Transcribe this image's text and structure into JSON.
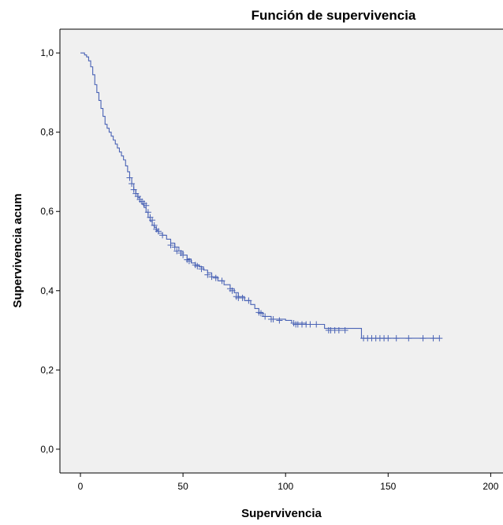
{
  "chart_data": {
    "type": "line",
    "title": "Función de supervivencia",
    "xlabel": "Supervivencia",
    "ylabel": "Supervivencia acum",
    "xlim": [
      -10,
      206
    ],
    "ylim": [
      -0.06,
      1.06
    ],
    "x_ticks": [
      0,
      50,
      100,
      150,
      200
    ],
    "x_tick_labels": [
      "0",
      "50",
      "100",
      "150",
      "200"
    ],
    "y_ticks": [
      0.0,
      0.2,
      0.4,
      0.6,
      0.8,
      1.0
    ],
    "y_tick_labels": [
      "0,0",
      "0,2",
      "0,4",
      "0,6",
      "0,8",
      "1,0"
    ],
    "grid": false,
    "colors": {
      "line": "#4a63b5",
      "plot_bg": "#f0f0f0",
      "frame": "#000000"
    },
    "series": [
      {
        "step": [
          [
            0,
            1.0
          ],
          [
            2,
            0.995
          ],
          [
            3,
            0.99
          ],
          [
            4,
            0.98
          ],
          [
            5,
            0.965
          ],
          [
            6,
            0.945
          ],
          [
            7,
            0.92
          ],
          [
            8,
            0.9
          ],
          [
            9,
            0.88
          ],
          [
            10,
            0.86
          ],
          [
            11,
            0.84
          ],
          [
            12,
            0.82
          ],
          [
            13,
            0.81
          ],
          [
            14,
            0.8
          ],
          [
            15,
            0.79
          ],
          [
            16,
            0.78
          ],
          [
            17,
            0.77
          ],
          [
            18,
            0.76
          ],
          [
            19,
            0.75
          ],
          [
            20,
            0.74
          ],
          [
            21,
            0.73
          ],
          [
            22,
            0.715
          ],
          [
            23,
            0.7
          ],
          [
            24,
            0.685
          ],
          [
            25,
            0.67
          ],
          [
            26,
            0.655
          ],
          [
            27,
            0.645
          ],
          [
            28,
            0.635
          ],
          [
            29,
            0.625
          ],
          [
            30,
            0.618
          ],
          [
            31,
            0.61
          ],
          [
            32,
            0.598
          ],
          [
            33,
            0.585
          ],
          [
            34,
            0.575
          ],
          [
            35,
            0.565
          ],
          [
            36,
            0.56
          ],
          [
            37,
            0.552
          ],
          [
            38,
            0.545
          ],
          [
            40,
            0.54
          ],
          [
            42,
            0.53
          ],
          [
            44,
            0.52
          ],
          [
            46,
            0.51
          ],
          [
            48,
            0.5
          ],
          [
            50,
            0.49
          ],
          [
            52,
            0.48
          ],
          [
            54,
            0.47
          ],
          [
            56,
            0.465
          ],
          [
            58,
            0.46
          ],
          [
            60,
            0.452
          ],
          [
            62,
            0.445
          ],
          [
            64,
            0.435
          ],
          [
            67,
            0.425
          ],
          [
            70,
            0.415
          ],
          [
            73,
            0.405
          ],
          [
            75,
            0.395
          ],
          [
            77,
            0.385
          ],
          [
            80,
            0.375
          ],
          [
            83,
            0.365
          ],
          [
            85,
            0.355
          ],
          [
            87,
            0.345
          ],
          [
            89,
            0.335
          ],
          [
            93,
            0.328
          ],
          [
            100,
            0.325
          ],
          [
            103,
            0.318
          ],
          [
            110,
            0.315
          ],
          [
            119,
            0.305
          ],
          [
            137,
            0.28
          ],
          [
            175,
            0.28
          ]
        ],
        "censored": [
          [
            24,
            0.685
          ],
          [
            25,
            0.67
          ],
          [
            26,
            0.655
          ],
          [
            27,
            0.645
          ],
          [
            28,
            0.638
          ],
          [
            29,
            0.63
          ],
          [
            30,
            0.625
          ],
          [
            31,
            0.62
          ],
          [
            32,
            0.615
          ],
          [
            33,
            0.598
          ],
          [
            34,
            0.585
          ],
          [
            35,
            0.578
          ],
          [
            36,
            0.565
          ],
          [
            37,
            0.555
          ],
          [
            38,
            0.55
          ],
          [
            40,
            0.54
          ],
          [
            44,
            0.515
          ],
          [
            46,
            0.51
          ],
          [
            47,
            0.5
          ],
          [
            49,
            0.495
          ],
          [
            50,
            0.49
          ],
          [
            52,
            0.478
          ],
          [
            53,
            0.475
          ],
          [
            56,
            0.465
          ],
          [
            57,
            0.462
          ],
          [
            59,
            0.455
          ],
          [
            62,
            0.44
          ],
          [
            64,
            0.435
          ],
          [
            66,
            0.432
          ],
          [
            69,
            0.425
          ],
          [
            73,
            0.405
          ],
          [
            74,
            0.4
          ],
          [
            76,
            0.385
          ],
          [
            77,
            0.382
          ],
          [
            79,
            0.382
          ],
          [
            82,
            0.375
          ],
          [
            87,
            0.345
          ],
          [
            88,
            0.343
          ],
          [
            90,
            0.335
          ],
          [
            93,
            0.328
          ],
          [
            94,
            0.328
          ],
          [
            97,
            0.325
          ],
          [
            104,
            0.318
          ],
          [
            105,
            0.315
          ],
          [
            106,
            0.315
          ],
          [
            108,
            0.315
          ],
          [
            110,
            0.315
          ],
          [
            112,
            0.315
          ],
          [
            115,
            0.315
          ],
          [
            121,
            0.3
          ],
          [
            122,
            0.3
          ],
          [
            124,
            0.3
          ],
          [
            126,
            0.3
          ],
          [
            129,
            0.3
          ],
          [
            138,
            0.28
          ],
          [
            140,
            0.28
          ],
          [
            142,
            0.28
          ],
          [
            144,
            0.28
          ],
          [
            146,
            0.28
          ],
          [
            148,
            0.28
          ],
          [
            150,
            0.28
          ],
          [
            154,
            0.28
          ],
          [
            160,
            0.28
          ],
          [
            167,
            0.28
          ],
          [
            172,
            0.28
          ],
          [
            175,
            0.28
          ]
        ]
      }
    ]
  }
}
